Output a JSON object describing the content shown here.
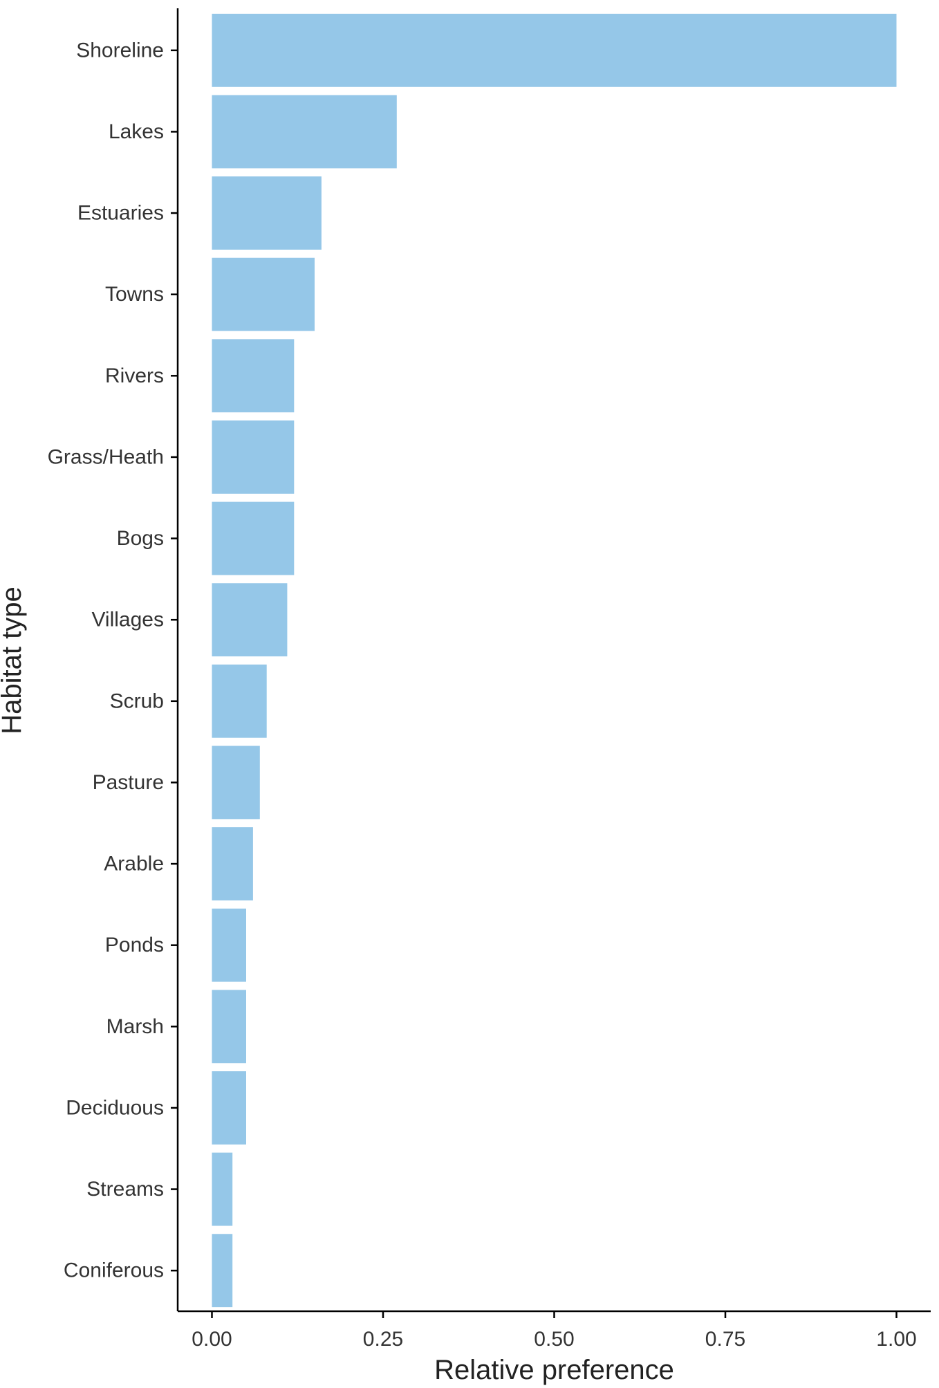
{
  "chart_data": {
    "type": "bar",
    "orientation": "horizontal",
    "xlabel": "Relative preference",
    "ylabel": "Habitat type",
    "xlim": [
      -0.05,
      1.05
    ],
    "x_ticks": [
      0.0,
      0.25,
      0.5,
      0.75,
      1.0
    ],
    "x_tick_labels": [
      "0.00",
      "0.25",
      "0.50",
      "0.75",
      "1.00"
    ],
    "grid": false,
    "bar_color": "#95C7E8",
    "categories": [
      "Shoreline",
      "Lakes",
      "Estuaries",
      "Towns",
      "Rivers",
      "Grass/Heath",
      "Bogs",
      "Villages",
      "Scrub",
      "Pasture",
      "Arable",
      "Ponds",
      "Marsh",
      "Deciduous",
      "Streams",
      "Coniferous"
    ],
    "values": [
      1.0,
      0.27,
      0.16,
      0.15,
      0.12,
      0.12,
      0.12,
      0.11,
      0.08,
      0.07,
      0.06,
      0.05,
      0.05,
      0.05,
      0.03,
      0.03
    ]
  }
}
